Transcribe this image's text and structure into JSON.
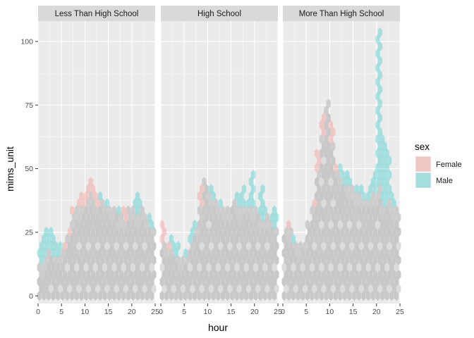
{
  "chart_data": {
    "type": "hexbin",
    "xlabel": "hour",
    "ylabel": "mims_unit",
    "xlim": [
      0,
      25
    ],
    "ylim": [
      -3,
      108
    ],
    "x_ticks": [
      0,
      5,
      10,
      15,
      20,
      25
    ],
    "y_ticks": [
      0,
      25,
      50,
      75,
      100
    ],
    "grid": true,
    "legend": {
      "title": "sex",
      "position": "right",
      "entries": [
        {
          "name": "Female",
          "color": "#F8766D"
        },
        {
          "name": "Male",
          "color": "#00BFC4"
        }
      ]
    },
    "panels": [
      {
        "title": "Less Than High School",
        "female_max": [
          12,
          14,
          18,
          16,
          16,
          20,
          26,
          36,
          38,
          40,
          44,
          46,
          40,
          38,
          36,
          34,
          36,
          32,
          34,
          36,
          34,
          32,
          34,
          30,
          28
        ],
        "male_max": [
          22,
          28,
          26,
          24,
          20,
          18,
          24,
          32,
          34,
          36,
          38,
          40,
          36,
          40,
          38,
          34,
          36,
          36,
          30,
          34,
          38,
          40,
          36,
          32,
          30
        ]
      },
      {
        "title": "High School",
        "female_max": [
          30,
          20,
          18,
          16,
          14,
          16,
          22,
          28,
          44,
          46,
          40,
          38,
          36,
          34,
          36,
          38,
          34,
          36,
          36,
          34,
          36,
          30,
          32,
          30,
          28
        ],
        "male_max": [
          22,
          18,
          24,
          20,
          16,
          18,
          26,
          30,
          34,
          46,
          42,
          40,
          38,
          36,
          34,
          38,
          40,
          44,
          38,
          48,
          36,
          42,
          34,
          32,
          34
        ]
      },
      {
        "title": "More Than High School",
        "female_max": [
          28,
          30,
          22,
          20,
          22,
          30,
          38,
          56,
          72,
          76,
          68,
          52,
          46,
          44,
          42,
          40,
          40,
          38,
          38,
          40,
          42,
          36,
          38,
          34,
          34
        ],
        "male_max": [
          28,
          26,
          24,
          22,
          22,
          30,
          36,
          50,
          64,
          76,
          60,
          50,
          52,
          50,
          46,
          42,
          44,
          40,
          42,
          50,
          106,
          64,
          56,
          40,
          36
        ]
      }
    ]
  },
  "colors": {
    "overlap": "#c8c8c8",
    "female": "#F8766D",
    "male": "#00BFC4",
    "panel_background": "#EBEBEB",
    "strip_background": "#D9D9D9"
  }
}
